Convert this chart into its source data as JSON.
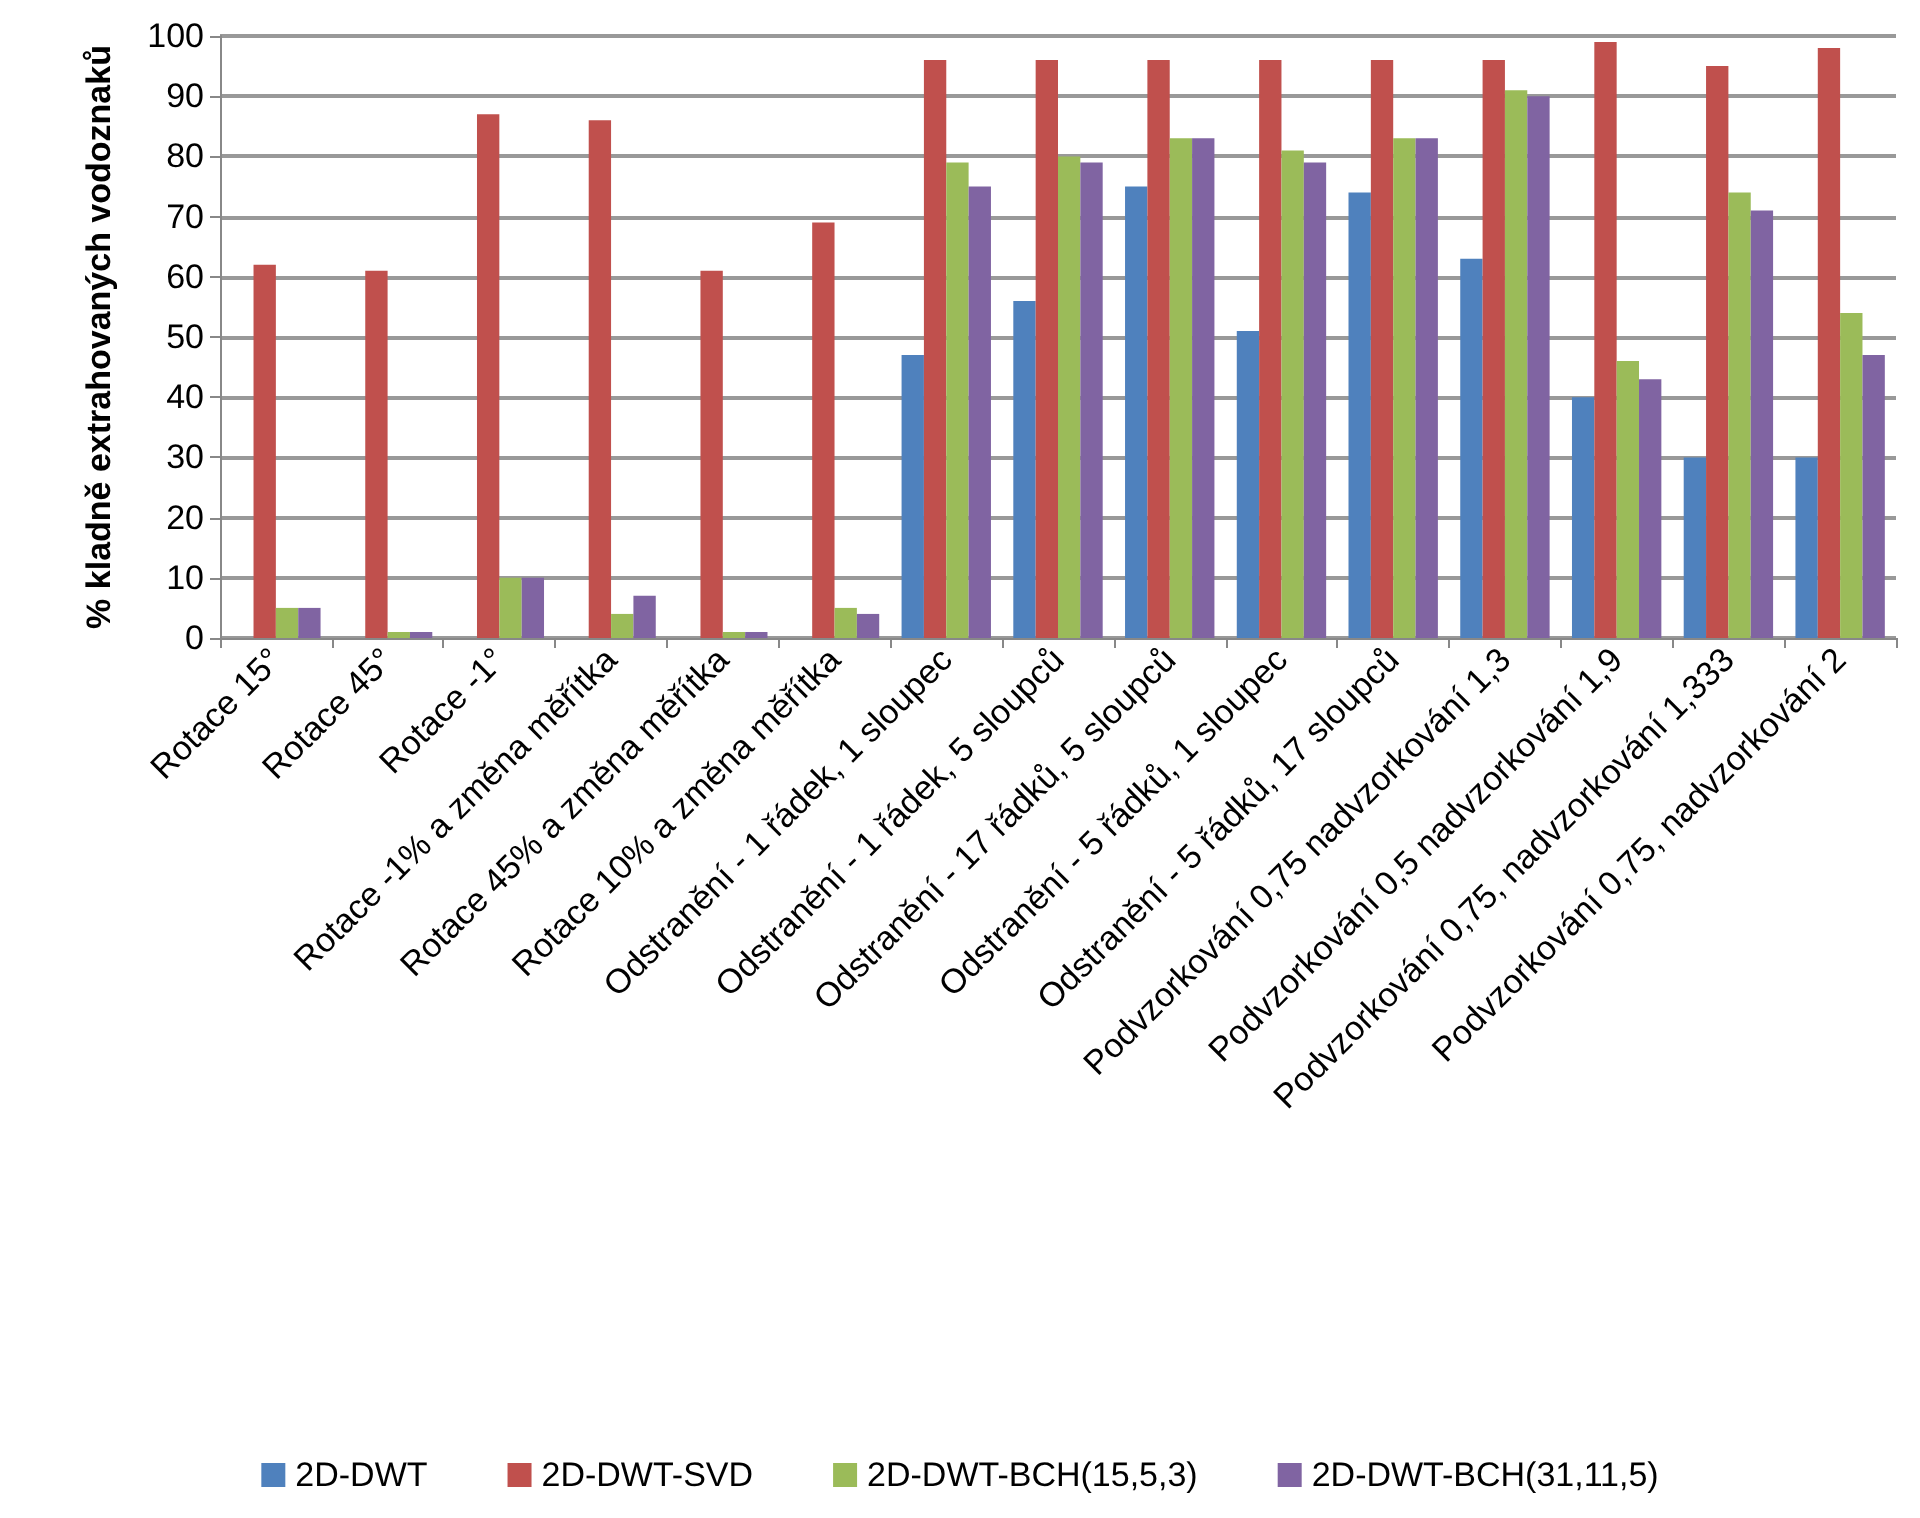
{
  "chart_data": {
    "type": "bar",
    "ylabel": "% kladně extrahovaných vodoznaků",
    "categories": [
      "Rotace 15°",
      "Rotace 45°",
      "Rotace -1°",
      "Rotace -1% a změna měřítka",
      "Rotace 45% a změna měřítka",
      "Rotace 10% a změna měřítka",
      "Odstranění - 1 řádek, 1 sloupec",
      "Odstranění - 1 řádek, 5 sloupců",
      "Odstranění - 17 řádků, 5 sloupců",
      "Odstranění - 5 řádků, 1 sloupec",
      "Odstranění - 5 řádků, 17 sloupců",
      "Podvzorkování 0,75 nadvzorkování 1,3",
      "Podvzorkování 0,5 nadvzorkování 1,9",
      "Podvzorkování 0,75, nadvzorkování 1,333",
      "Podvzorkování 0,75, nadvzorkování 2"
    ],
    "series": [
      {
        "name": "2D-DWT",
        "color": "#4f81bd",
        "values": [
          0,
          0,
          0,
          0,
          0,
          0,
          47,
          56,
          75,
          51,
          74,
          63,
          40,
          30,
          30
        ]
      },
      {
        "name": "2D-DWT-SVD",
        "color": "#c0504d",
        "values": [
          62,
          61,
          87,
          86,
          61,
          69,
          96,
          96,
          96,
          96,
          96,
          96,
          99,
          95,
          98
        ]
      },
      {
        "name": "2D-DWT-BCH(15,5,3)",
        "color": "#9bbb59",
        "values": [
          5,
          1,
          10,
          4,
          1,
          5,
          79,
          80,
          83,
          81,
          83,
          91,
          46,
          74,
          54
        ]
      },
      {
        "name": "2D-DWT-BCH(31,11,5)",
        "color": "#8064a2",
        "values": [
          5,
          1,
          10,
          7,
          1,
          4,
          75,
          79,
          83,
          79,
          83,
          90,
          43,
          71,
          47
        ]
      }
    ],
    "ylim": [
      0,
      100
    ],
    "yticks": [
      0,
      10,
      20,
      30,
      40,
      50,
      60,
      70,
      80,
      90,
      100
    ],
    "grid": "y",
    "legend": "bottom"
  }
}
